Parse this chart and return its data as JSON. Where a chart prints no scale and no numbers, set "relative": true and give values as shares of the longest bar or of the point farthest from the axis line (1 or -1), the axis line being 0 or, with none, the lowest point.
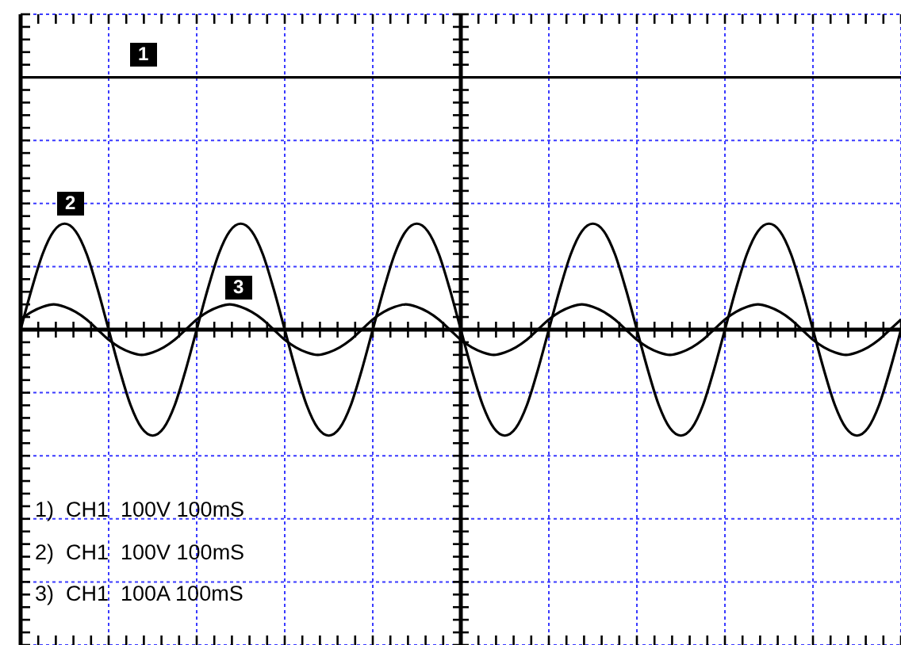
{
  "chart_data": {
    "type": "line",
    "relative": true,
    "grid": true,
    "marker": "none",
    "categories": [
      null,
      null,
      null,
      null,
      null,
      null,
      null,
      null,
      null,
      null,
      null,
      null,
      null,
      null,
      null,
      null,
      null,
      null,
      null,
      null,
      null,
      null,
      null,
      null,
      null,
      null,
      null,
      null,
      null,
      null,
      null,
      null,
      null,
      null,
      null,
      null,
      null,
      null,
      null,
      null,
      null,
      null,
      null,
      null,
      null,
      null,
      null,
      null,
      null,
      null,
      null,
      null,
      null,
      null,
      null,
      null,
      null,
      null,
      null,
      null,
      null,
      null,
      null,
      null,
      null,
      null,
      null,
      null,
      null,
      null,
      null,
      null,
      null,
      null,
      null,
      null,
      null,
      null,
      null,
      null,
      null
    ],
    "series": [
      {
        "name": "1",
        "color": "#000000",
        "values": [
          1,
          1,
          1,
          1,
          1,
          1,
          1,
          1,
          1,
          1,
          1,
          1,
          1,
          1,
          1,
          1,
          1,
          1,
          1,
          1,
          1,
          1,
          1,
          1,
          1,
          1,
          1,
          1,
          1,
          1,
          1,
          1,
          1,
          1,
          1,
          1,
          1,
          1,
          1,
          1,
          1,
          1,
          1,
          1,
          1,
          1,
          1,
          1,
          1,
          1,
          1,
          1,
          1,
          1,
          1,
          1,
          1,
          1,
          1,
          1,
          1,
          1,
          1,
          1,
          1,
          1,
          1,
          1,
          1,
          1,
          1,
          1,
          1,
          1,
          1,
          1,
          1,
          1,
          1,
          1,
          1
        ]
      },
      {
        "name": "2",
        "color": "#000000",
        "values": [
          0,
          0.16,
          0.3,
          0.39,
          0.42,
          0.39,
          0.3,
          0.16,
          0,
          -0.16,
          -0.3,
          -0.39,
          -0.42,
          -0.39,
          -0.3,
          -0.16,
          0,
          0.16,
          0.3,
          0.39,
          0.42,
          0.39,
          0.3,
          0.16,
          0,
          -0.16,
          -0.3,
          -0.39,
          -0.42,
          -0.39,
          -0.3,
          -0.16,
          0,
          0.16,
          0.3,
          0.39,
          0.42,
          0.39,
          0.3,
          0.16,
          0,
          -0.16,
          -0.3,
          -0.39,
          -0.42,
          -0.39,
          -0.3,
          -0.16,
          0,
          0.16,
          0.3,
          0.39,
          0.42,
          0.39,
          0.3,
          0.16,
          0,
          -0.16,
          -0.3,
          -0.39,
          -0.42,
          -0.39,
          -0.3,
          -0.16,
          0,
          0.16,
          0.3,
          0.39,
          0.42,
          0.39,
          0.3,
          0.16,
          0,
          -0.16,
          -0.3,
          -0.39,
          -0.42,
          -0.39,
          -0.3,
          -0.16,
          0
        ]
      },
      {
        "name": "3",
        "color": "#000000",
        "values": [
          0.04,
          0.07,
          0.09,
          0.1,
          0.09,
          0.07,
          0.04,
          0,
          -0.04,
          -0.07,
          -0.09,
          -0.1,
          -0.09,
          -0.07,
          -0.04,
          0,
          0.04,
          0.07,
          0.09,
          0.1,
          0.09,
          0.07,
          0.04,
          0,
          -0.04,
          -0.07,
          -0.09,
          -0.1,
          -0.09,
          -0.07,
          -0.04,
          0,
          0.04,
          0.07,
          0.09,
          0.1,
          0.09,
          0.07,
          0.04,
          0,
          -0.04,
          -0.07,
          -0.09,
          -0.1,
          -0.09,
          -0.07,
          -0.04,
          0,
          0.04,
          0.07,
          0.09,
          0.1,
          0.09,
          0.07,
          0.04,
          0,
          -0.04,
          -0.07,
          -0.09,
          -0.1,
          -0.09,
          -0.07,
          -0.04,
          0,
          0.04,
          0.07,
          0.09,
          0.1,
          0.09,
          0.07,
          0.04,
          0,
          -0.04,
          -0.07,
          -0.09,
          -0.1,
          -0.09,
          -0.07,
          -0.04,
          0,
          0.04
        ]
      }
    ],
    "annotations": [
      "1)  CH1  100V 100mS",
      "2)  CH1  100V 100mS",
      "3)  CH1  100A 100mS"
    ]
  }
}
